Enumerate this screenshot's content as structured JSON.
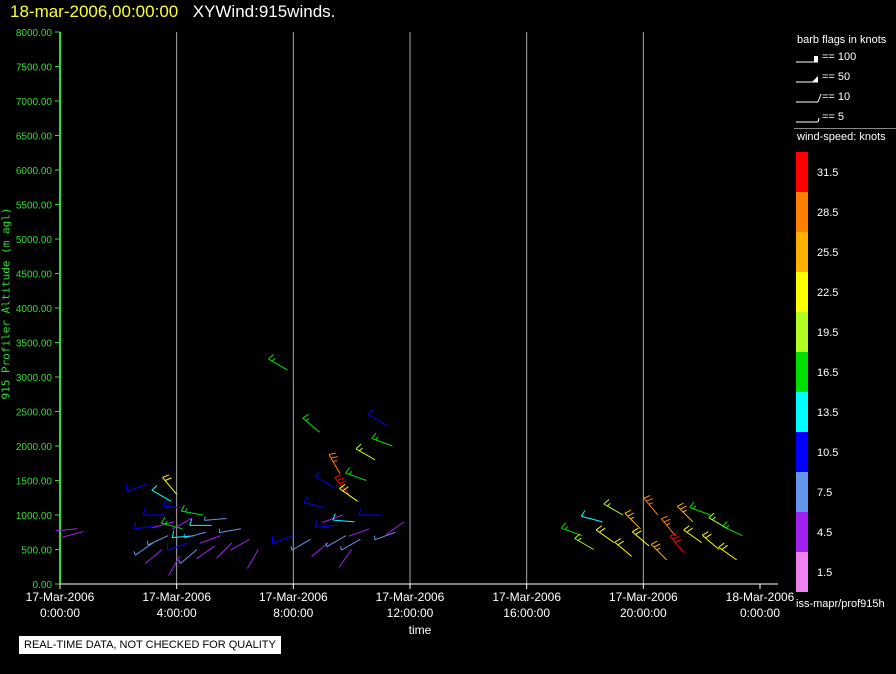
{
  "header": {
    "datetime": "18-mar-2006,00:00:00",
    "title": "XYWind:915winds."
  },
  "notice": "REAL-TIME DATA, NOT CHECKED FOR QUALITY",
  "source_label": "iss-mapr/prof915h",
  "legend": {
    "barb_title": "barb flags in knots",
    "barbs": [
      {
        "label": "== 100",
        "kind": "flag"
      },
      {
        "label": "== 50",
        "kind": "pennant"
      },
      {
        "label": "== 10",
        "kind": "full"
      },
      {
        "label": "== 5",
        "kind": "half"
      }
    ],
    "colorbar_title": "wind-speed: knots",
    "colorbar": [
      {
        "label": "31.5",
        "color": "#ff0000"
      },
      {
        "label": "28.5",
        "color": "#ff7f00"
      },
      {
        "label": "25.5",
        "color": "#ffb000"
      },
      {
        "label": "22.5",
        "color": "#ffff00"
      },
      {
        "label": "19.5",
        "color": "#b0ff20"
      },
      {
        "label": "16.5",
        "color": "#00e000"
      },
      {
        "label": "13.5",
        "color": "#00ffff"
      },
      {
        "label": "10.5",
        "color": "#0000ff"
      },
      {
        "label": "7.5",
        "color": "#6495ed"
      },
      {
        "label": "4.5",
        "color": "#a020f0"
      },
      {
        "label": "1.5",
        "color": "#ee82ee"
      }
    ]
  },
  "chart_data": {
    "type": "scatter",
    "title": "XYWind:915winds.",
    "xlabel": "time",
    "ylabel": "915 Profiler Altitude (m agl)",
    "xlim": [
      "17-Mar-2006 0:00:00",
      "18-Mar-2006 0:00:00"
    ],
    "ylim": [
      0,
      8000
    ],
    "xticks": [
      {
        "date": "17-Mar-2006",
        "time": "0:00:00",
        "hour": 0
      },
      {
        "date": "17-Mar-2006",
        "time": "4:00:00",
        "hour": 4
      },
      {
        "date": "17-Mar-2006",
        "time": "8:00:00",
        "hour": 8
      },
      {
        "date": "17-Mar-2006",
        "time": "12:00:00",
        "hour": 12
      },
      {
        "date": "17-Mar-2006",
        "time": "16:00:00",
        "hour": 16
      },
      {
        "date": "17-Mar-2006",
        "time": "20:00:00",
        "hour": 20
      },
      {
        "date": "18-Mar-2006",
        "time": "0:00:00",
        "hour": 24
      }
    ],
    "yticks": [
      "0.00",
      "500.00",
      "1000.00",
      "1500.00",
      "2000.00",
      "2500.00",
      "3000.00",
      "3500.00",
      "4000.00",
      "4500.00",
      "5000.00",
      "5500.00",
      "6000.00",
      "6500.00",
      "7000.00",
      "7500.00",
      "8000.00"
    ],
    "vertical_gridlines": true,
    "colors": {
      "axis": "#33dd33",
      "grid": "#aaaaaa"
    },
    "wind_barbs": [
      {
        "hour": 0.6,
        "alt": 800,
        "speed": 4.5,
        "dir": 265
      },
      {
        "hour": 0.8,
        "alt": 760,
        "speed": 4.5,
        "dir": 255
      },
      {
        "hour": 3.0,
        "alt": 1450,
        "speed": 10.5,
        "dir": 250
      },
      {
        "hour": 3.2,
        "alt": 600,
        "speed": 7.5,
        "dir": 235
      },
      {
        "hour": 3.3,
        "alt": 850,
        "speed": 10.5,
        "dir": 260
      },
      {
        "hour": 3.5,
        "alt": 500,
        "speed": 4.5,
        "dir": 230
      },
      {
        "hour": 3.6,
        "alt": 1000,
        "speed": 10.5,
        "dir": 270
      },
      {
        "hour": 3.7,
        "alt": 700,
        "speed": 7.5,
        "dir": 245
      },
      {
        "hour": 3.8,
        "alt": 1200,
        "speed": 13.5,
        "dir": 300
      },
      {
        "hour": 3.9,
        "alt": 900,
        "speed": 4.5,
        "dir": 255
      },
      {
        "hour": 4.0,
        "alt": 1300,
        "speed": 22.5,
        "dir": 320
      },
      {
        "hour": 4.1,
        "alt": 400,
        "speed": 4.5,
        "dir": 210
      },
      {
        "hour": 4.2,
        "alt": 800,
        "speed": 16.5,
        "dir": 285
      },
      {
        "hour": 4.3,
        "alt": 1100,
        "speed": 10.5,
        "dir": 275
      },
      {
        "hour": 4.4,
        "alt": 600,
        "speed": 10.5,
        "dir": 250
      },
      {
        "hour": 4.5,
        "alt": 950,
        "speed": 4.5,
        "dir": 240
      },
      {
        "hour": 4.6,
        "alt": 700,
        "speed": 13.5,
        "dir": 265
      },
      {
        "hour": 4.7,
        "alt": 500,
        "speed": 7.5,
        "dir": 230
      },
      {
        "hour": 4.9,
        "alt": 1000,
        "speed": 16.5,
        "dir": 280
      },
      {
        "hour": 5.0,
        "alt": 750,
        "speed": 7.5,
        "dir": 255
      },
      {
        "hour": 5.2,
        "alt": 850,
        "speed": 13.5,
        "dir": 270
      },
      {
        "hour": 5.3,
        "alt": 550,
        "speed": 4.5,
        "dir": 235
      },
      {
        "hour": 5.5,
        "alt": 700,
        "speed": 4.5,
        "dir": 250
      },
      {
        "hour": 5.7,
        "alt": 950,
        "speed": 7.5,
        "dir": 265
      },
      {
        "hour": 5.9,
        "alt": 600,
        "speed": 4.5,
        "dir": 225
      },
      {
        "hour": 6.2,
        "alt": 800,
        "speed": 7.5,
        "dir": 260
      },
      {
        "hour": 6.5,
        "alt": 650,
        "speed": 4.5,
        "dir": 240
      },
      {
        "hour": 6.8,
        "alt": 500,
        "speed": 4.5,
        "dir": 210
      },
      {
        "hour": 7.8,
        "alt": 3100,
        "speed": 16.5,
        "dir": 300
      },
      {
        "hour": 8.0,
        "alt": 700,
        "speed": 10.5,
        "dir": 250
      },
      {
        "hour": 8.6,
        "alt": 650,
        "speed": 7.5,
        "dir": 240
      },
      {
        "hour": 8.9,
        "alt": 2200,
        "speed": 16.5,
        "dir": 310
      },
      {
        "hour": 9.1,
        "alt": 1100,
        "speed": 10.5,
        "dir": 285
      },
      {
        "hour": 9.2,
        "alt": 600,
        "speed": 4.5,
        "dir": 230
      },
      {
        "hour": 9.4,
        "alt": 1400,
        "speed": 10.5,
        "dir": 300
      },
      {
        "hour": 9.5,
        "alt": 850,
        "speed": 10.5,
        "dir": 265
      },
      {
        "hour": 9.6,
        "alt": 1600,
        "speed": 28.5,
        "dir": 330
      },
      {
        "hour": 9.7,
        "alt": 1000,
        "speed": 4.5,
        "dir": 250
      },
      {
        "hour": 9.8,
        "alt": 700,
        "speed": 7.5,
        "dir": 240
      },
      {
        "hour": 9.9,
        "alt": 1300,
        "speed": 31.5,
        "dir": 320
      },
      {
        "hour": 10.0,
        "alt": 500,
        "speed": 4.5,
        "dir": 215
      },
      {
        "hour": 10.1,
        "alt": 900,
        "speed": 13.5,
        "dir": 275
      },
      {
        "hour": 10.2,
        "alt": 1200,
        "speed": 22.5,
        "dir": 305
      },
      {
        "hour": 10.3,
        "alt": 650,
        "speed": 7.5,
        "dir": 240
      },
      {
        "hour": 10.5,
        "alt": 1500,
        "speed": 16.5,
        "dir": 290
      },
      {
        "hour": 10.6,
        "alt": 800,
        "speed": 4.5,
        "dir": 250
      },
      {
        "hour": 10.8,
        "alt": 1800,
        "speed": 19.5,
        "dir": 300
      },
      {
        "hour": 11.0,
        "alt": 1000,
        "speed": 10.5,
        "dir": 270
      },
      {
        "hour": 11.2,
        "alt": 2300,
        "speed": 10.5,
        "dir": 300
      },
      {
        "hour": 11.4,
        "alt": 2000,
        "speed": 16.5,
        "dir": 290
      },
      {
        "hour": 11.5,
        "alt": 750,
        "speed": 7.5,
        "dir": 250
      },
      {
        "hour": 11.8,
        "alt": 900,
        "speed": 4.5,
        "dir": 235
      },
      {
        "hour": 17.9,
        "alt": 700,
        "speed": 16.5,
        "dir": 290
      },
      {
        "hour": 18.3,
        "alt": 500,
        "speed": 19.5,
        "dir": 300
      },
      {
        "hour": 18.6,
        "alt": 900,
        "speed": 13.5,
        "dir": 285
      },
      {
        "hour": 19.0,
        "alt": 600,
        "speed": 22.5,
        "dir": 305
      },
      {
        "hour": 19.3,
        "alt": 1000,
        "speed": 19.5,
        "dir": 300
      },
      {
        "hour": 19.6,
        "alt": 400,
        "speed": 22.5,
        "dir": 310
      },
      {
        "hour": 19.9,
        "alt": 800,
        "speed": 25.5,
        "dir": 315
      },
      {
        "hour": 20.2,
        "alt": 550,
        "speed": 22.5,
        "dir": 310
      },
      {
        "hour": 20.5,
        "alt": 1000,
        "speed": 28.5,
        "dir": 320
      },
      {
        "hour": 20.8,
        "alt": 350,
        "speed": 25.5,
        "dir": 315
      },
      {
        "hour": 21.1,
        "alt": 700,
        "speed": 28.5,
        "dir": 320
      },
      {
        "hour": 21.4,
        "alt": 450,
        "speed": 31.5,
        "dir": 320
      },
      {
        "hour": 21.7,
        "alt": 900,
        "speed": 25.5,
        "dir": 315
      },
      {
        "hour": 22.0,
        "alt": 600,
        "speed": 22.5,
        "dir": 305
      },
      {
        "hour": 22.3,
        "alt": 1000,
        "speed": 16.5,
        "dir": 290
      },
      {
        "hour": 22.6,
        "alt": 500,
        "speed": 22.5,
        "dir": 310
      },
      {
        "hour": 22.9,
        "alt": 800,
        "speed": 19.5,
        "dir": 300
      },
      {
        "hour": 23.2,
        "alt": 350,
        "speed": 22.5,
        "dir": 305
      },
      {
        "hour": 23.4,
        "alt": 700,
        "speed": 16.5,
        "dir": 295
      }
    ]
  }
}
